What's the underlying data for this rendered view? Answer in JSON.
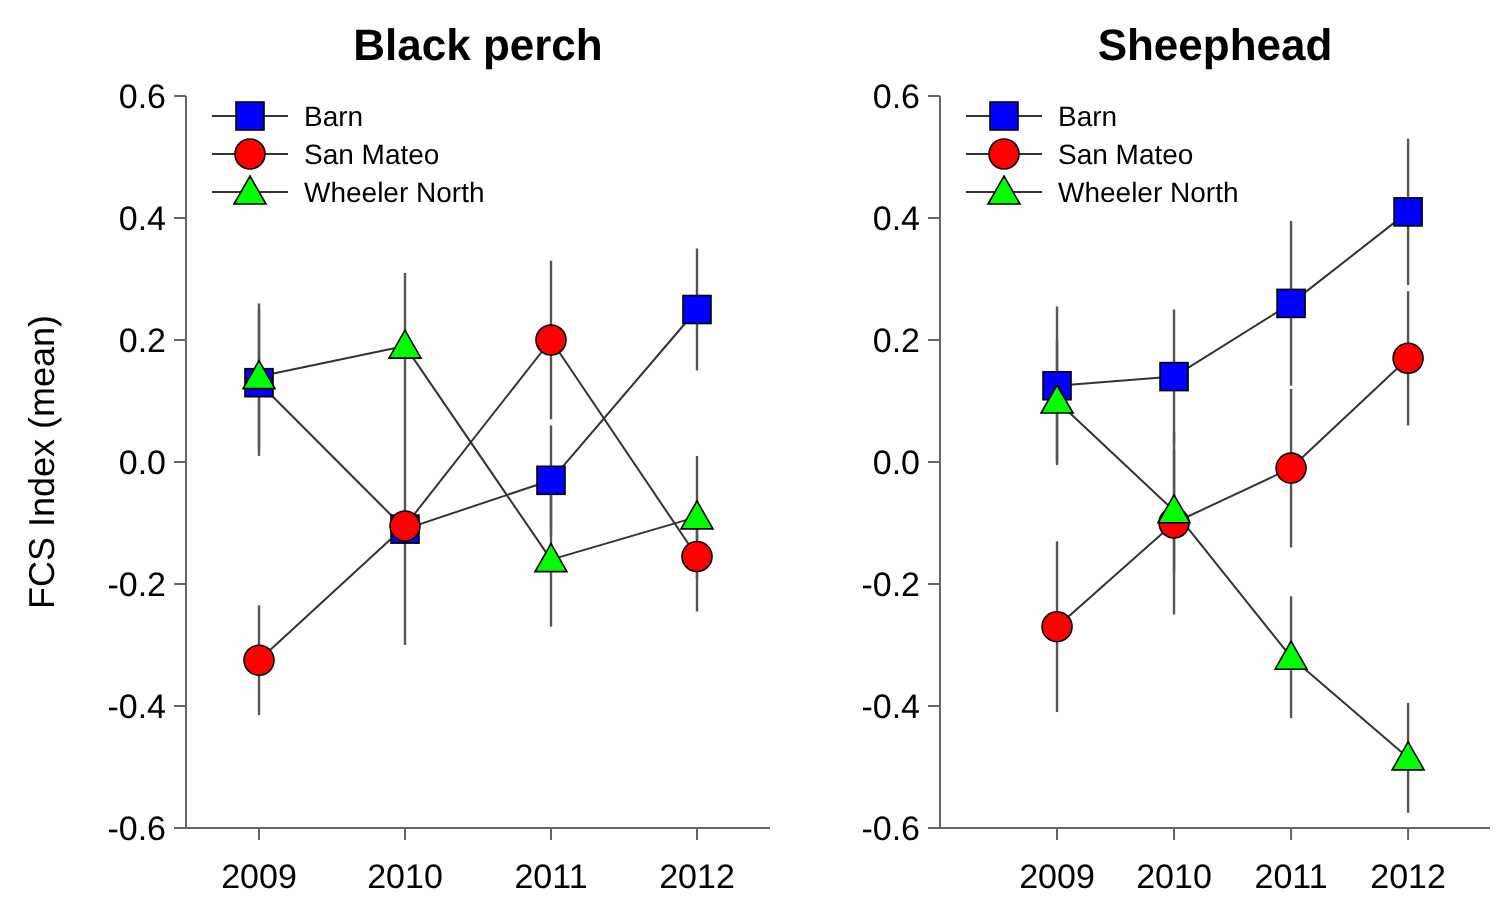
{
  "chart_data": [
    {
      "type": "line",
      "title": "Black perch",
      "ylabel": "FCS Index (mean)",
      "x": [
        2009,
        2010,
        2011,
        2012
      ],
      "xlim": [
        2008.5,
        2012.5
      ],
      "xticks": [
        2009,
        2010,
        2011,
        2012
      ],
      "ylim": [
        -0.6,
        0.6
      ],
      "yticks": [
        {
          "value": -0.6,
          "label": "-0.6"
        },
        {
          "value": -0.4,
          "label": "-0.4"
        },
        {
          "value": -0.2,
          "label": "-0.2"
        },
        {
          "value": 0,
          "label": "0.0"
        },
        {
          "value": 0.2,
          "label": "0.2"
        },
        {
          "value": 0.4,
          "label": "0.4"
        },
        {
          "value": 0.6,
          "label": "0.6"
        }
      ],
      "legend": "top left",
      "series": [
        {
          "name": "Barn",
          "color": "#0000ff",
          "marker": "square",
          "values": [
            0.13,
            -0.11,
            -0.03,
            0.25
          ],
          "errors": [
            0.12,
            null,
            0.09,
            0.1
          ]
        },
        {
          "name": "San Mateo",
          "color": "#ff0000",
          "marker": "circle",
          "values": [
            -0.325,
            -0.105,
            0.2,
            -0.155
          ],
          "errors": [
            0.09,
            [
              -0.3,
              0.31
            ],
            0.13,
            0.09
          ]
        },
        {
          "name": "Wheeler North",
          "color": "#00ff00",
          "marker": "triangle",
          "values": [
            0.14,
            0.19,
            -0.16,
            -0.09
          ],
          "errors": [
            0.12,
            null,
            0.11,
            0.1
          ]
        }
      ]
    },
    {
      "type": "line",
      "title": "Sheephead",
      "x": [
        2009,
        2010,
        2011,
        2012
      ],
      "xlim": [
        2008,
        2012.7
      ],
      "xticks": [
        2009,
        2010,
        2011,
        2012
      ],
      "ylim": [
        -0.6,
        0.6
      ],
      "yticks": [
        {
          "value": -0.6,
          "label": "-0.6"
        },
        {
          "value": -0.4,
          "label": "-0.4"
        },
        {
          "value": -0.2,
          "label": "-0.2"
        },
        {
          "value": 0,
          "label": "0.0"
        },
        {
          "value": 0.2,
          "label": "0.2"
        },
        {
          "value": 0.4,
          "label": "0.4"
        },
        {
          "value": 0.6,
          "label": "0.6"
        }
      ],
      "legend": "top left",
      "series": [
        {
          "name": "Barn",
          "color": "#0000ff",
          "marker": "square",
          "values": [
            0.125,
            0.14,
            0.26,
            0.41
          ],
          "errors": [
            0.13,
            0.11,
            0.135,
            0.12
          ]
        },
        {
          "name": "San Mateo",
          "color": "#ff0000",
          "marker": "circle",
          "values": [
            -0.27,
            -0.1,
            -0.01,
            0.17
          ],
          "errors": [
            0.14,
            0.15,
            0.13,
            0.11
          ]
        },
        {
          "name": "Wheeler North",
          "color": "#00ff00",
          "marker": "triangle",
          "values": [
            0.1,
            -0.08,
            -0.32,
            -0.485
          ],
          "errors": [
            0.1,
            0.1,
            0.1,
            0.09
          ]
        }
      ]
    }
  ]
}
